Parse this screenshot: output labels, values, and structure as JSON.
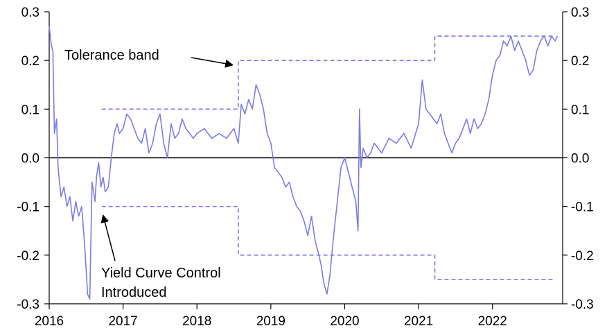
{
  "chart_data": {
    "type": "line",
    "title": "",
    "xlabel": "",
    "ylabel": "",
    "x_ticks": [
      "2016",
      "2017",
      "2018",
      "2019",
      "2020",
      "2021",
      "2022"
    ],
    "y_ticks_left": [
      "0.3",
      "0.2",
      "0.1",
      "0.0",
      "-0.1",
      "-0.2",
      "-0.3"
    ],
    "y_ticks_right": [
      "0.3",
      "0.2",
      "0.1",
      "0.0",
      "-0.1",
      "-0.2",
      "-0.3"
    ],
    "xlim": [
      2016.0,
      2022.95
    ],
    "ylim": [
      -0.3,
      0.3
    ],
    "zero_line": true,
    "series": [
      {
        "color": "#7b7be6",
        "style": "solid",
        "x": [
          2016.0,
          2016.03,
          2016.05,
          2016.07,
          2016.1,
          2016.12,
          2016.14,
          2016.16,
          2016.2,
          2016.24,
          2016.28,
          2016.32,
          2016.36,
          2016.4,
          2016.44,
          2016.48,
          2016.52,
          2016.55,
          2016.57,
          2016.58,
          2016.6,
          2016.62,
          2016.64,
          2016.67,
          2016.7,
          2016.73,
          2016.76,
          2016.8,
          2016.84,
          2016.88,
          2016.92,
          2016.95,
          2017.0,
          2017.05,
          2017.1,
          2017.15,
          2017.2,
          2017.25,
          2017.3,
          2017.35,
          2017.4,
          2017.45,
          2017.5,
          2017.55,
          2017.6,
          2017.65,
          2017.7,
          2017.75,
          2017.8,
          2017.85,
          2017.9,
          2017.95,
          2018.0,
          2018.1,
          2018.2,
          2018.3,
          2018.4,
          2018.5,
          2018.56,
          2018.6,
          2018.65,
          2018.7,
          2018.75,
          2018.8,
          2018.85,
          2018.9,
          2018.95,
          2019.0,
          2019.05,
          2019.1,
          2019.15,
          2019.2,
          2019.25,
          2019.3,
          2019.35,
          2019.4,
          2019.45,
          2019.5,
          2019.55,
          2019.6,
          2019.65,
          2019.68,
          2019.72,
          2019.76,
          2019.8,
          2019.85,
          2019.9,
          2019.95,
          2020.0,
          2020.05,
          2020.1,
          2020.15,
          2020.18,
          2020.2,
          2020.22,
          2020.25,
          2020.3,
          2020.35,
          2020.4,
          2020.5,
          2020.6,
          2020.7,
          2020.8,
          2020.9,
          2021.0,
          2021.05,
          2021.1,
          2021.15,
          2021.2,
          2021.25,
          2021.3,
          2021.35,
          2021.4,
          2021.45,
          2021.5,
          2021.55,
          2021.6,
          2021.65,
          2021.7,
          2021.75,
          2021.8,
          2021.85,
          2021.9,
          2021.95,
          2022.0,
          2022.05,
          2022.1,
          2022.15,
          2022.2,
          2022.25,
          2022.3,
          2022.35,
          2022.4,
          2022.45,
          2022.5,
          2022.55,
          2022.6,
          2022.65,
          2022.7,
          2022.75,
          2022.8,
          2022.85,
          2022.88
        ],
        "y": [
          0.27,
          0.23,
          0.22,
          0.05,
          0.08,
          -0.02,
          -0.05,
          -0.08,
          -0.06,
          -0.1,
          -0.08,
          -0.13,
          -0.09,
          -0.12,
          -0.1,
          -0.18,
          -0.28,
          -0.29,
          -0.12,
          -0.05,
          -0.07,
          -0.09,
          -0.04,
          -0.01,
          -0.06,
          -0.04,
          -0.07,
          -0.06,
          0.0,
          0.05,
          0.07,
          0.05,
          0.06,
          0.09,
          0.08,
          0.06,
          0.04,
          0.03,
          0.06,
          0.01,
          0.03,
          0.07,
          0.09,
          0.03,
          0.0,
          0.07,
          0.04,
          0.05,
          0.08,
          0.06,
          0.05,
          0.04,
          0.05,
          0.06,
          0.04,
          0.05,
          0.04,
          0.06,
          0.03,
          0.11,
          0.09,
          0.12,
          0.1,
          0.15,
          0.13,
          0.1,
          0.05,
          0.03,
          -0.02,
          -0.03,
          -0.04,
          -0.06,
          -0.05,
          -0.08,
          -0.1,
          -0.11,
          -0.13,
          -0.16,
          -0.12,
          -0.17,
          -0.2,
          -0.22,
          -0.26,
          -0.28,
          -0.24,
          -0.16,
          -0.09,
          -0.02,
          0.0,
          -0.03,
          -0.06,
          -0.09,
          -0.15,
          0.1,
          -0.02,
          0.02,
          0.0,
          0.01,
          0.03,
          0.01,
          0.04,
          0.03,
          0.05,
          0.02,
          0.07,
          0.16,
          0.1,
          0.09,
          0.08,
          0.07,
          0.09,
          0.05,
          0.03,
          0.01,
          0.03,
          0.04,
          0.06,
          0.08,
          0.05,
          0.08,
          0.06,
          0.07,
          0.09,
          0.12,
          0.17,
          0.2,
          0.21,
          0.24,
          0.23,
          0.25,
          0.22,
          0.24,
          0.22,
          0.2,
          0.17,
          0.18,
          0.22,
          0.24,
          0.25,
          0.23,
          0.25,
          0.24,
          0.25
        ]
      },
      {
        "color": "#7b7be6",
        "style": "dashed",
        "x": [
          2016.71,
          2018.56,
          2018.56,
          2021.22,
          2021.22,
          2022.83
        ],
        "y": [
          0.1,
          0.1,
          0.2,
          0.2,
          0.25,
          0.25
        ]
      },
      {
        "color": "#7b7be6",
        "style": "dashed",
        "x": [
          2016.71,
          2018.56,
          2018.56,
          2021.22,
          2021.22,
          2022.83
        ],
        "y": [
          -0.1,
          -0.1,
          -0.2,
          -0.2,
          -0.25,
          -0.25
        ]
      }
    ],
    "annotations": [
      {
        "text": "Tolerance band",
        "arrow_to": [
          2018.56,
          0.195
        ]
      },
      {
        "lines": [
          "Yield Curve Control",
          "Introduced"
        ],
        "arrow_to": [
          2016.71,
          -0.115
        ]
      }
    ]
  }
}
